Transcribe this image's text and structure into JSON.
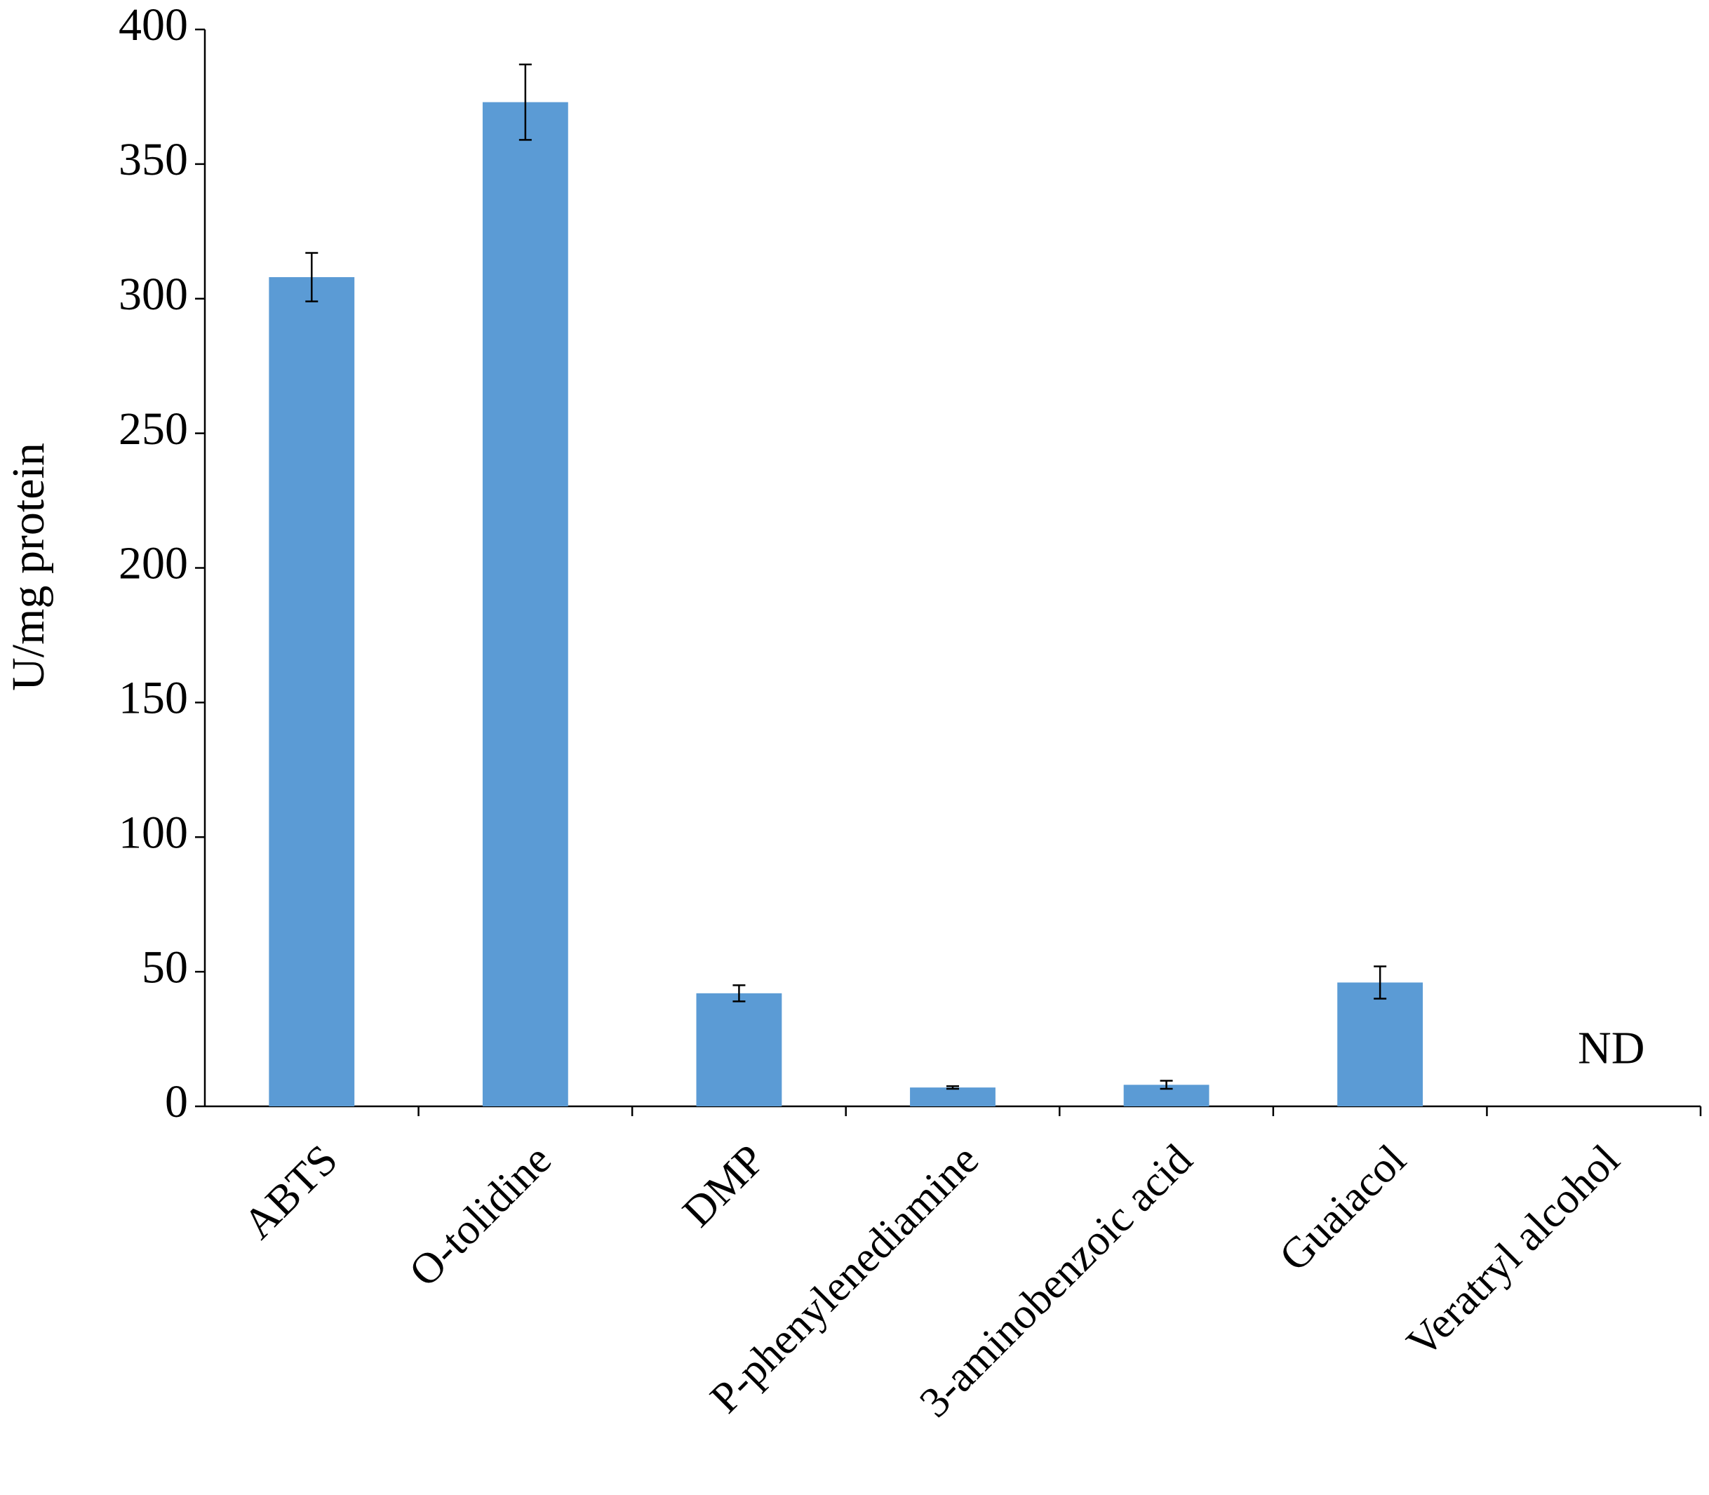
{
  "chart_data": {
    "type": "bar",
    "y_label": "U/mg protein",
    "categories": [
      "ABTS",
      "O-tolidine",
      "DMP",
      "P-phenylenediamine",
      "3-aminobenzoic acid",
      "Guaiacol",
      "Veratryl alcohol"
    ],
    "values": [
      308,
      373,
      42,
      7,
      8,
      46,
      null
    ],
    "errors": [
      9,
      14,
      3,
      0.5,
      1.5,
      6,
      null
    ],
    "value_labels": [
      null,
      null,
      null,
      null,
      null,
      null,
      "ND"
    ],
    "color": "#5b9bd5",
    "ylim": [
      0,
      400
    ],
    "yticks": [
      0,
      50,
      100,
      150,
      200,
      250,
      300,
      350,
      400
    ],
    "grid": false
  }
}
